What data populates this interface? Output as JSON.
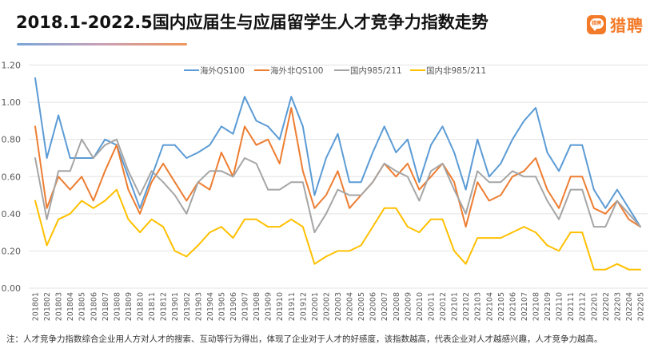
{
  "header": {
    "title": "2018.1-2022.5国内应届生与应届留学生人才竞争力指数走势",
    "underline_colors": [
      "#7aa7da",
      "#f0955a"
    ]
  },
  "logo": {
    "badge_text": "猎聘",
    "text": "猎聘",
    "color": "#f27a28"
  },
  "note": "注：人才竞争力指数综合企业用人方对人才的搜索、互动等行为得出，体现了企业对于人才的好感度，该指数越高，代表企业对人才越感兴趣，人才竞争力越高。",
  "chart_data": {
    "type": "line",
    "title": "2018.1-2022.5国内应届生与应届留学生人才竞争力指数走势",
    "xlabel": "",
    "ylabel": "",
    "ylim": [
      0,
      1.2
    ],
    "yticks": [
      "0.00",
      "0.20",
      "0.40",
      "0.60",
      "0.80",
      "1.00",
      "1.20"
    ],
    "ytick_values": [
      0,
      0.2,
      0.4,
      0.6,
      0.8,
      1.0,
      1.2
    ],
    "grid": true,
    "legend_position": "top",
    "categories": [
      "201801",
      "201802",
      "201803",
      "201804",
      "201805",
      "201806",
      "201807",
      "201808",
      "201809",
      "201810",
      "201811",
      "201812",
      "201901",
      "201902",
      "201903",
      "201904",
      "201905",
      "201906",
      "201907",
      "201908",
      "201909",
      "201910",
      "201911",
      "201912",
      "202001",
      "202002",
      "202003",
      "202004",
      "202005",
      "202006",
      "202007",
      "202008",
      "202009",
      "202010",
      "202011",
      "202012",
      "202101",
      "202102",
      "202103",
      "202104",
      "202105",
      "202106",
      "202107",
      "202108",
      "202109",
      "202110",
      "202111",
      "202112",
      "202201",
      "202202",
      "202203",
      "202204",
      "202205"
    ],
    "series": [
      {
        "name": "海外QS100",
        "color": "#5b9bd5",
        "values": [
          1.13,
          0.7,
          0.93,
          0.7,
          0.7,
          0.7,
          0.8,
          0.77,
          0.6,
          0.43,
          0.6,
          0.77,
          0.77,
          0.7,
          0.73,
          0.77,
          0.87,
          0.83,
          1.03,
          0.9,
          0.87,
          0.8,
          1.03,
          0.87,
          0.5,
          0.7,
          0.83,
          0.57,
          0.57,
          0.73,
          0.87,
          0.73,
          0.8,
          0.57,
          0.77,
          0.87,
          0.73,
          0.53,
          0.8,
          0.6,
          0.67,
          0.8,
          0.9,
          0.97,
          0.73,
          0.63,
          0.77,
          0.77,
          0.53,
          0.43,
          0.53,
          0.43,
          0.33
        ]
      },
      {
        "name": "海外非QS100",
        "color": "#ed7d31",
        "values": [
          0.87,
          0.43,
          0.6,
          0.53,
          0.6,
          0.47,
          0.63,
          0.77,
          0.53,
          0.4,
          0.57,
          0.67,
          0.57,
          0.47,
          0.57,
          0.53,
          0.73,
          0.6,
          0.87,
          0.77,
          0.8,
          0.67,
          0.97,
          0.63,
          0.43,
          0.5,
          0.63,
          0.43,
          0.5,
          0.57,
          0.67,
          0.6,
          0.67,
          0.53,
          0.6,
          0.67,
          0.57,
          0.33,
          0.57,
          0.47,
          0.5,
          0.6,
          0.63,
          0.7,
          0.53,
          0.43,
          0.6,
          0.6,
          0.43,
          0.4,
          0.47,
          0.37,
          0.33
        ]
      },
      {
        "name": "国内985/211",
        "color": "#a5a5a5",
        "values": [
          0.7,
          0.37,
          0.63,
          0.63,
          0.8,
          0.7,
          0.77,
          0.8,
          0.63,
          0.5,
          0.63,
          0.57,
          0.5,
          0.4,
          0.57,
          0.63,
          0.63,
          0.6,
          0.7,
          0.67,
          0.53,
          0.53,
          0.57,
          0.57,
          0.3,
          0.4,
          0.53,
          0.5,
          0.5,
          0.57,
          0.67,
          0.63,
          0.6,
          0.47,
          0.63,
          0.67,
          0.53,
          0.4,
          0.63,
          0.57,
          0.57,
          0.63,
          0.6,
          0.6,
          0.47,
          0.37,
          0.53,
          0.53,
          0.33,
          0.33,
          0.47,
          0.4,
          0.33
        ]
      },
      {
        "name": "国内非985/211",
        "color": "#ffc000",
        "values": [
          0.47,
          0.23,
          0.37,
          0.4,
          0.47,
          0.43,
          0.47,
          0.53,
          0.37,
          0.3,
          0.37,
          0.33,
          0.2,
          0.17,
          0.23,
          0.3,
          0.33,
          0.27,
          0.37,
          0.37,
          0.33,
          0.33,
          0.37,
          0.33,
          0.13,
          0.17,
          0.2,
          0.2,
          0.23,
          0.33,
          0.43,
          0.43,
          0.33,
          0.3,
          0.37,
          0.37,
          0.2,
          0.13,
          0.27,
          0.27,
          0.27,
          0.3,
          0.33,
          0.3,
          0.23,
          0.2,
          0.3,
          0.3,
          0.1,
          0.1,
          0.13,
          0.1,
          0.1
        ]
      }
    ]
  }
}
